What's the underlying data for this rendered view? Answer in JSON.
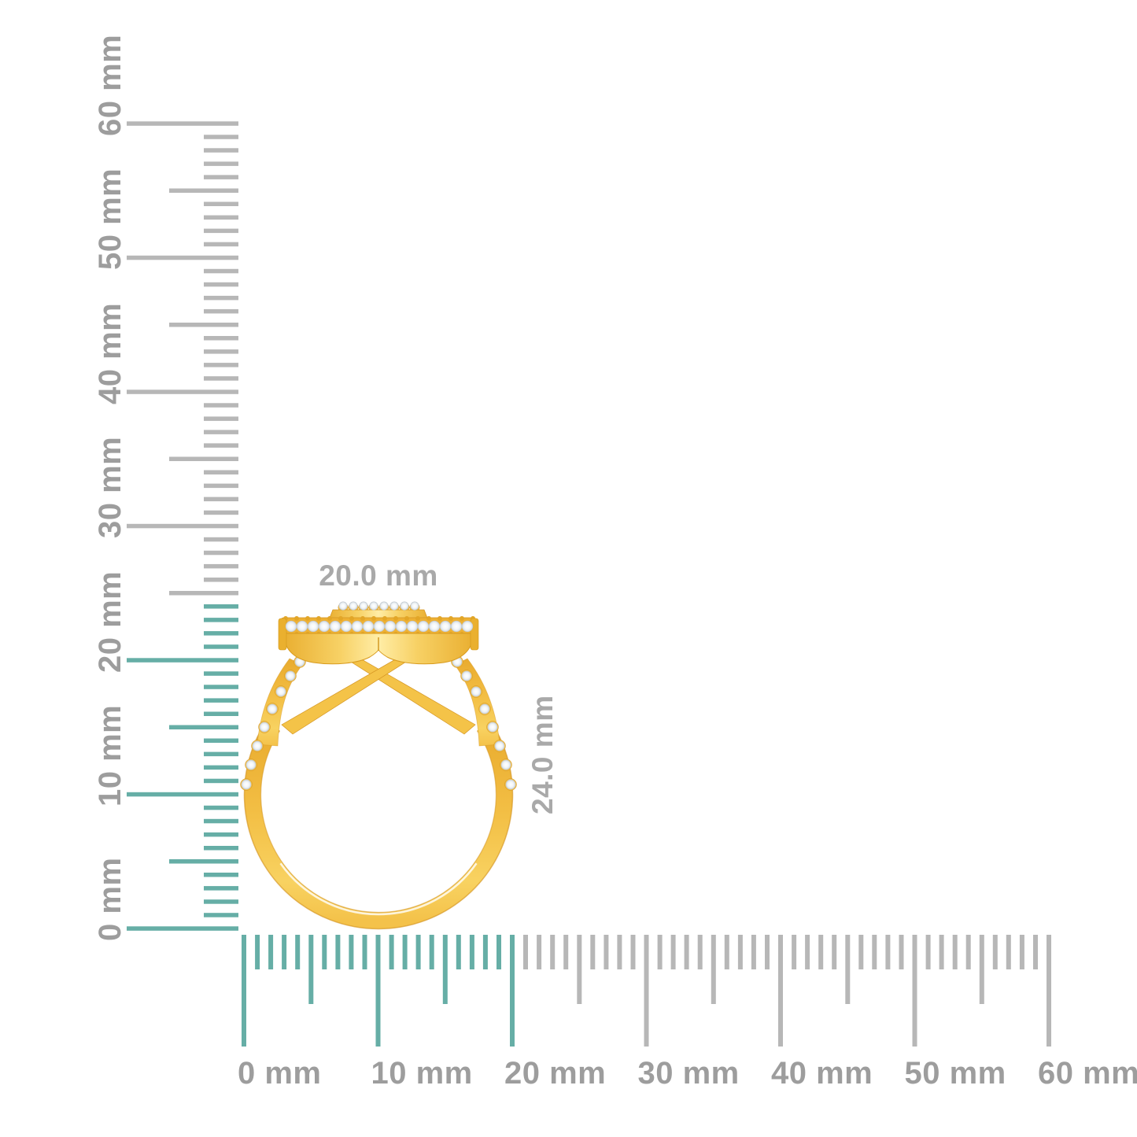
{
  "rulers": {
    "unit": "mm",
    "colors": {
      "tick_gray": "#b7b7b7",
      "tick_teal": "#66aea6",
      "label_gray": "#9d9d9d"
    },
    "vertical": {
      "labels": [
        "0 mm",
        "10 mm",
        "20 mm",
        "30 mm",
        "40 mm",
        "50 mm",
        "60 mm"
      ],
      "range_mm": [
        0,
        60
      ],
      "minor_tick_step_mm": 1,
      "mid_tick_step_mm": 5,
      "major_tick_step_mm": 10,
      "highlighted_extent_mm": 24
    },
    "horizontal": {
      "labels": [
        "0 mm",
        "10 mm",
        "20 mm",
        "30 mm",
        "40 mm",
        "50 mm",
        "60 mm"
      ],
      "range_mm": [
        0,
        60
      ],
      "minor_tick_step_mm": 1,
      "mid_tick_step_mm": 5,
      "major_tick_step_mm": 10,
      "highlighted_extent_mm": 20
    }
  },
  "dimension_annotations": {
    "width_label": "20.0 mm",
    "height_label": "24.0 mm",
    "color": "#a9a9a9"
  },
  "ring_colors": {
    "gold_base": "#f3bf45",
    "gold_light": "#f8d261",
    "gold_highlight": "#ffeda6",
    "gold_shadow": "#d49523",
    "diamond": "#f3f6f8"
  }
}
